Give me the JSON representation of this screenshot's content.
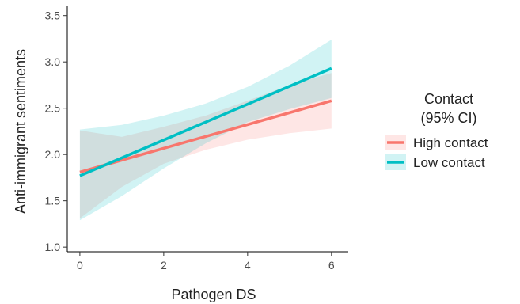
{
  "chart_data": {
    "type": "line",
    "xlabel": "Pathogen DS",
    "ylabel": "Anti-immigrant sentiments",
    "xlim": [
      -0.3,
      6.4
    ],
    "ylim": [
      0.95,
      3.6
    ],
    "xticks": [
      0,
      2,
      4,
      6
    ],
    "yticks": [
      1.0,
      1.5,
      2.0,
      2.5,
      3.0,
      3.5
    ],
    "xtick_labels": [
      "0",
      "2",
      "4",
      "6"
    ],
    "ytick_labels": [
      "1.0",
      "1.5",
      "2.0",
      "2.5",
      "3.0",
      "3.5"
    ],
    "grid": false,
    "legend": {
      "title_line1": "Contact",
      "title_line2": "(95% CI)",
      "placement": "right"
    },
    "series": [
      {
        "name": "High contact",
        "color": "#F8766D",
        "x": [
          0,
          6
        ],
        "y": [
          1.81,
          2.58
        ],
        "ci_x": [
          0,
          1,
          2,
          3,
          4,
          5,
          6
        ],
        "ci_lower": [
          1.31,
          1.65,
          1.9,
          2.05,
          2.16,
          2.23,
          2.28
        ],
        "ci_upper": [
          2.26,
          2.19,
          2.3,
          2.42,
          2.58,
          2.75,
          2.88
        ]
      },
      {
        "name": "Low contact",
        "color": "#00BFC4",
        "x": [
          0,
          6
        ],
        "y": [
          1.77,
          2.93
        ],
        "ci_x": [
          0,
          1,
          2,
          3,
          4,
          5,
          6
        ],
        "ci_lower": [
          1.29,
          1.55,
          1.85,
          2.12,
          2.35,
          2.49,
          2.61
        ],
        "ci_upper": [
          2.27,
          2.32,
          2.42,
          2.55,
          2.73,
          2.96,
          3.24
        ]
      }
    ]
  }
}
